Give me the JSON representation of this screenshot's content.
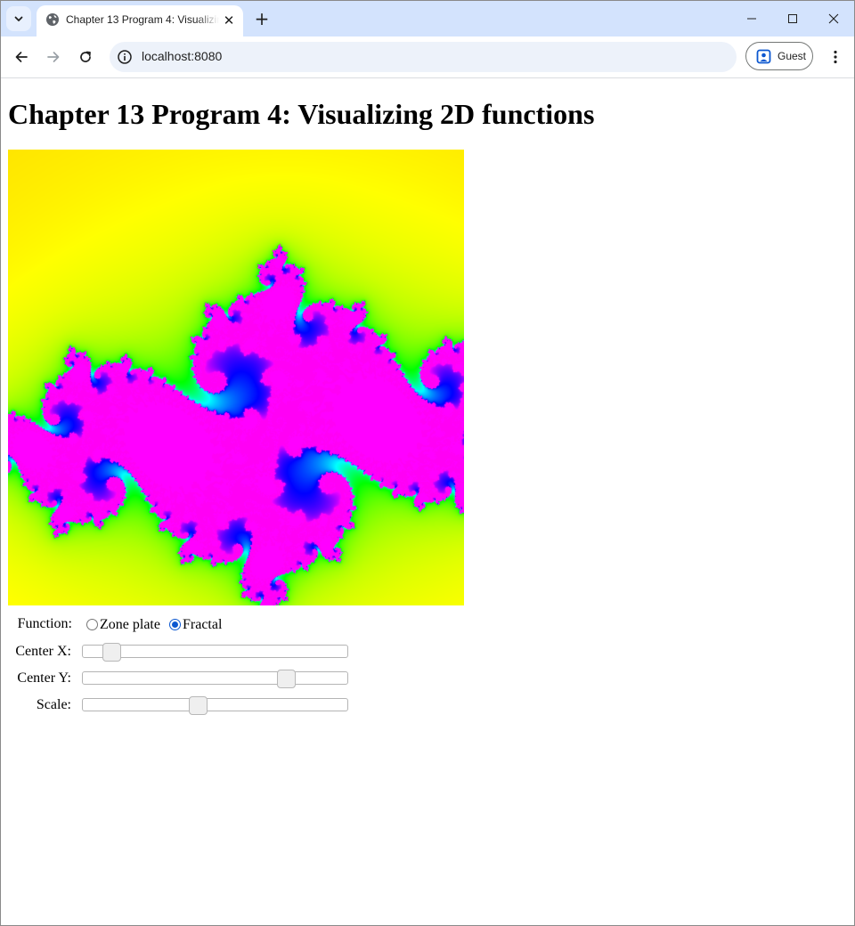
{
  "browser": {
    "tab_title": "Chapter 13 Program 4: Visualizing 2D functions",
    "url": "localhost:8080",
    "profile_label": "Guest",
    "tab_close_glyph": "✕",
    "new_tab_glyph": "+"
  },
  "page": {
    "heading": "Chapter 13 Program 4: Visualizing 2D functions"
  },
  "controls": {
    "function_label": "Function:",
    "options": [
      {
        "label": "Zone plate",
        "checked": false
      },
      {
        "label": "Fractal",
        "checked": true
      }
    ],
    "center_x_label": "Center X:",
    "center_y_label": "Center Y:",
    "scale_label": "Scale:",
    "center_x_value": 0.08,
    "center_y_value": 0.79,
    "scale_value": 0.43
  },
  "icons": {
    "tab_search": "chevron-down-icon",
    "favicon": "globe-icon",
    "back": "arrow-left-icon",
    "forward": "arrow-right-icon",
    "reload": "reload-icon",
    "site_info": "info-icon",
    "profile": "profile-icon",
    "menu": "kebab-menu-icon"
  }
}
